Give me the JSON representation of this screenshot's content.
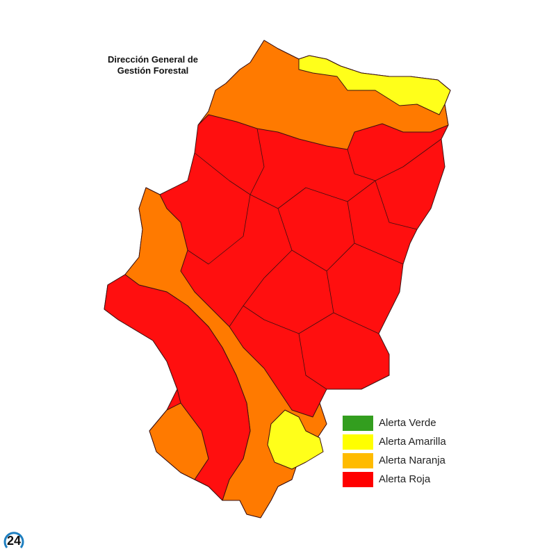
{
  "title": {
    "line1": "Dirección General de",
    "line2": "Gestión Forestal"
  },
  "legend": [
    {
      "label": "Alerta Verde",
      "color": "#339e1f"
    },
    {
      "label": "Alerta Amarilla",
      "color": "#ffff00"
    },
    {
      "label": "Alerta Naranja",
      "color": "#ffbb00"
    },
    {
      "label": "Alerta Roja",
      "color": "#ff0000"
    }
  ],
  "map_colors": {
    "red": "#ff0f0f",
    "orange": "#ff7a00",
    "yellow": "#ffff1a",
    "border": "#3a1010"
  },
  "logo": {
    "text": "24",
    "ring_color": "#1e7fc0"
  }
}
